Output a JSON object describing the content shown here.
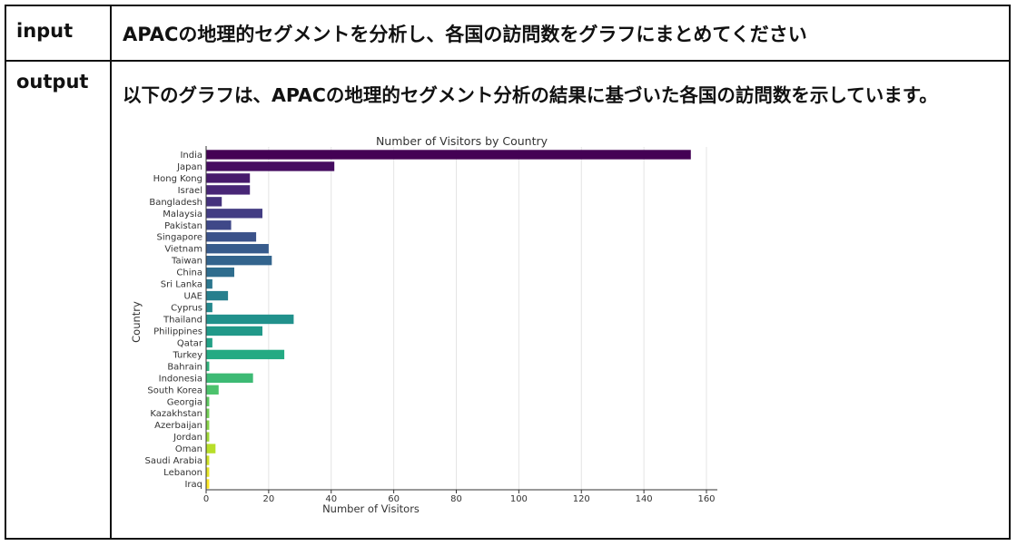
{
  "table": {
    "input_label": "input",
    "input_text": "APACの地理的セグメントを分析し、各国の訪問数をグラフにまとめてください",
    "output_label": "output",
    "output_text": "以下のグラフは、APACの地理的セグメント分析の結果に基づいた各国の訪問数を示しています。"
  },
  "chart_data": {
    "type": "bar",
    "orientation": "horizontal",
    "title": "Number of Visitors by Country",
    "xlabel": "Number of Visitors",
    "ylabel": "Country",
    "xlim": [
      0,
      160
    ],
    "xticks": [
      0,
      20,
      40,
      60,
      80,
      100,
      120,
      140,
      160
    ],
    "grid": "vertical",
    "colormap": "viridis",
    "categories": [
      "India",
      "Japan",
      "Hong Kong",
      "Israel",
      "Bangladesh",
      "Malaysia",
      "Pakistan",
      "Singapore",
      "Vietnam",
      "Taiwan",
      "China",
      "Sri Lanka",
      "UAE",
      "Cyprus",
      "Thailand",
      "Philippines",
      "Qatar",
      "Turkey",
      "Bahrain",
      "Indonesia",
      "South Korea",
      "Georgia",
      "Kazakhstan",
      "Azerbaijan",
      "Jordan",
      "Oman",
      "Saudi Arabia",
      "Lebanon",
      "Iraq"
    ],
    "values": [
      155,
      41,
      14,
      14,
      5,
      18,
      8,
      16,
      20,
      21,
      9,
      2,
      7,
      2,
      28,
      18,
      2,
      25,
      1,
      15,
      4,
      1,
      1,
      1,
      1,
      3,
      1,
      1,
      1
    ]
  }
}
